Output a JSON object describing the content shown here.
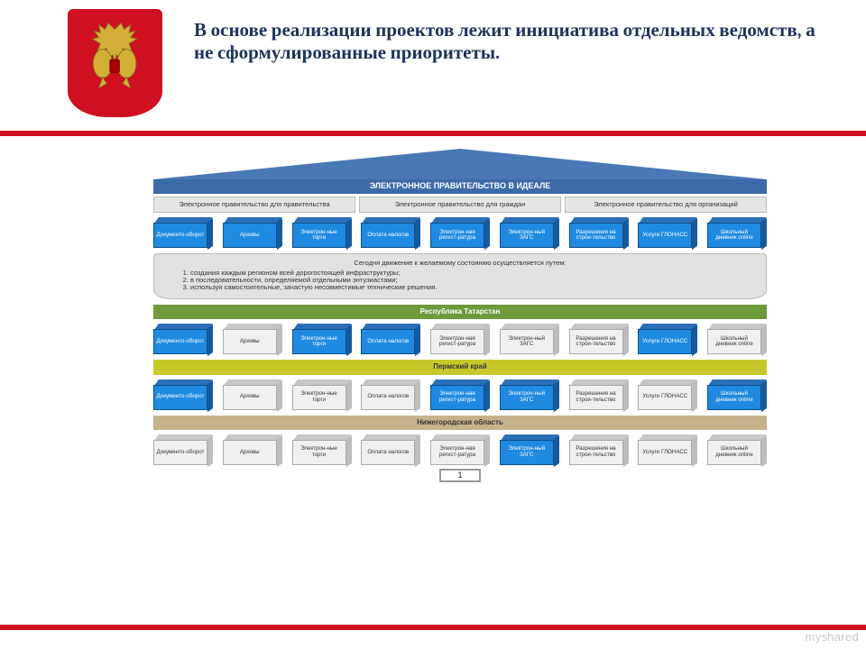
{
  "header": {
    "title": "В основе реализации проектов лежит инициатива отдельных ведомств, а не сформулированные приоритеты.",
    "title_color": "#1e335b",
    "title_fontsize": 21,
    "emblem_bg": "#cf1020",
    "stripe_color": "#cf1020"
  },
  "roof": {
    "triangle_color": "#4a78b5",
    "band_color": "#3d6aa8",
    "label": "ЭЛЕКТРОННОЕ ПРАВИТЕЛЬСТВО В ИДЕАЛЕ",
    "label_color": "#ffffff"
  },
  "sections": {
    "bg": "#e6e6e6",
    "items": [
      "Электронное правительство для правительства",
      "Электронное правительство для граждан",
      "Электронное правительство для организаций"
    ]
  },
  "service_labels": [
    "Документо-оборот",
    "Архивы",
    "Электрон-ные торги",
    "Оплата налогов",
    "Электрон-ная регист-ратура",
    "Электрон-ный ЗАГС",
    "Разрешения на строи-тельство",
    "Услуги ГЛОНАСС",
    "Школьный дневник online"
  ],
  "top_row_colors": [
    "blue",
    "blue",
    "blue",
    "blue",
    "blue",
    "blue",
    "blue",
    "blue",
    "blue"
  ],
  "platform": {
    "bg": "#e2e2e2",
    "lead": "Сегодня движение к желаемому состоянию осуществляется путем:",
    "items": [
      "создания каждым регионом всей дорогостоящей инфраструктуры;",
      "в последовательности, определяемой отдельными энтузиастами;",
      "используя самостоятельные, зачастую несовместимые технические решения."
    ]
  },
  "regions": [
    {
      "name": "Республика Татарстан",
      "bar_bg": "#6d9a3a",
      "text_color": "#ffffff",
      "cubes": [
        "blue",
        "grey",
        "blue",
        "blue",
        "grey",
        "grey",
        "grey",
        "blue",
        "grey"
      ]
    },
    {
      "name": "Пермский край",
      "bar_bg": "#c7c92a",
      "text_color": "#333333",
      "cubes": [
        "blue",
        "grey",
        "grey",
        "grey",
        "blue",
        "blue",
        "grey",
        "grey",
        "blue"
      ]
    },
    {
      "name": "Нижегородская область",
      "bar_bg": "#c7b28e",
      "text_color": "#333333",
      "cubes": [
        "grey",
        "grey",
        "grey",
        "grey",
        "grey",
        "blue",
        "grey",
        "grey",
        "grey"
      ]
    }
  ],
  "page_number": "1",
  "watermark": "myshared",
  "palette": {
    "cube_blue_front": "#1f8adf",
    "cube_blue_lid": "#2b6fb8",
    "cube_blue_side": "#155a9e",
    "cube_grey_front": "#f0f0f0",
    "cube_grey_lid": "#c7c7c7",
    "cube_grey_side": "#bdbdbd"
  }
}
